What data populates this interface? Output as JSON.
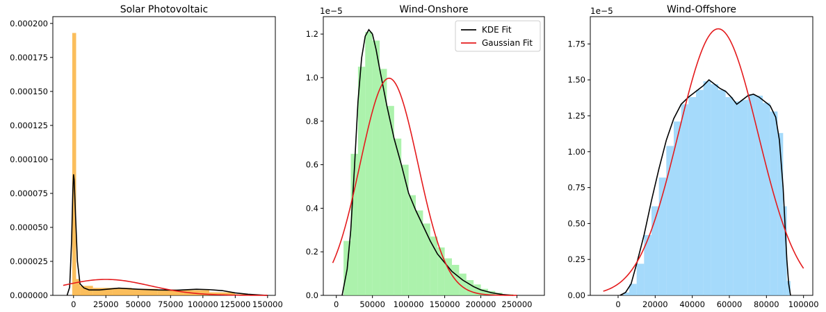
{
  "chart_data": [
    {
      "type": "histogram-density",
      "title": "Solar Photovoltaic",
      "xlim": [
        -16000,
        156000
      ],
      "ylim": [
        0,
        0.000205
      ],
      "xticks": [
        0,
        25000,
        50000,
        75000,
        100000,
        125000,
        150000
      ],
      "xtick_labels": [
        "0",
        "25000",
        "50000",
        "75000",
        "100000",
        "125000",
        "150000"
      ],
      "yticks": [
        0,
        2.5e-05,
        5e-05,
        7.5e-05,
        0.0001,
        0.000125,
        0.00015,
        0.000175,
        0.0002
      ],
      "ytick_labels": [
        "0.000000",
        "0.000025",
        "0.000050",
        "0.000075",
        "0.000100",
        "0.000125",
        "0.000150",
        "0.000175",
        "0.000200"
      ],
      "y_offset_label": "",
      "hist_color": "#f9a825",
      "hist_bins": [
        {
          "x0": -1000,
          "x1": 2000,
          "y": 0.000193
        },
        {
          "x0": 2000,
          "x1": 5000,
          "y": 1.2e-05
        },
        {
          "x0": 5000,
          "x1": 15000,
          "y": 7e-06
        },
        {
          "x0": 15000,
          "x1": 30000,
          "y": 5.5e-06
        },
        {
          "x0": 30000,
          "x1": 45000,
          "y": 5.5e-06
        },
        {
          "x0": 45000,
          "x1": 65000,
          "y": 4.8e-06
        },
        {
          "x0": 65000,
          "x1": 85000,
          "y": 4.2e-06
        },
        {
          "x0": 85000,
          "x1": 105000,
          "y": 3.8e-06
        },
        {
          "x0": 105000,
          "x1": 125000,
          "y": 2.2e-06
        },
        {
          "x0": 125000,
          "x1": 140000,
          "y": 8e-07
        },
        {
          "x0": 140000,
          "x1": 150000,
          "y": 2e-07
        }
      ],
      "kde": {
        "x": [
          -5000,
          -3000,
          -1500,
          -500,
          0,
          500,
          1500,
          3000,
          5000,
          8000,
          12000,
          20000,
          35000,
          50000,
          65000,
          80000,
          95000,
          105000,
          115000,
          125000,
          135000,
          145000,
          150000
        ],
        "y": [
          0.0,
          6e-06,
          4e-05,
          7.8e-05,
          8.9e-05,
          8.5e-05,
          6e-05,
          2.5e-05,
          8.5e-06,
          5.5e-06,
          4e-06,
          4e-06,
          5.3e-06,
          4.5e-06,
          4e-06,
          3.8e-06,
          4.5e-06,
          4.2e-06,
          3.5e-06,
          1.8e-06,
          8e-07,
          2e-07,
          0.0
        ]
      },
      "gaussian": {
        "mean": 25000,
        "std": 34000,
        "xrange": [
          -8000,
          150000
        ]
      },
      "legend": null
    },
    {
      "type": "histogram-density",
      "title": "Wind-Onshore",
      "xlim": [
        -18000,
        288000
      ],
      "ylim": [
        0,
        1.28e-05
      ],
      "xticks": [
        0,
        50000,
        100000,
        150000,
        200000,
        250000
      ],
      "xtick_labels": [
        "0",
        "50000",
        "100000",
        "150000",
        "200000",
        "250000"
      ],
      "yticks": [
        0,
        2e-06,
        4e-06,
        6e-06,
        8e-06,
        1e-05,
        1.2e-05
      ],
      "ytick_labels": [
        "0.0",
        "0.2",
        "0.4",
        "0.6",
        "0.8",
        "1.0",
        "1.2"
      ],
      "y_offset_label": "1e−5",
      "hist_color": "#90ee90",
      "hist_bins": [
        {
          "x0": 10000,
          "x1": 20000,
          "y": 2.5e-06
        },
        {
          "x0": 20000,
          "x1": 30000,
          "y": 6.5e-06
        },
        {
          "x0": 30000,
          "x1": 40000,
          "y": 1.05e-05
        },
        {
          "x0": 40000,
          "x1": 50000,
          "y": 1.21e-05
        },
        {
          "x0": 50000,
          "x1": 60000,
          "y": 1.17e-05
        },
        {
          "x0": 60000,
          "x1": 70000,
          "y": 1.04e-05
        },
        {
          "x0": 70000,
          "x1": 80000,
          "y": 8.7e-06
        },
        {
          "x0": 80000,
          "x1": 90000,
          "y": 7.2e-06
        },
        {
          "x0": 90000,
          "x1": 100000,
          "y": 6e-06
        },
        {
          "x0": 100000,
          "x1": 110000,
          "y": 4.6e-06
        },
        {
          "x0": 110000,
          "x1": 120000,
          "y": 3.9e-06
        },
        {
          "x0": 120000,
          "x1": 130000,
          "y": 3.3e-06
        },
        {
          "x0": 130000,
          "x1": 140000,
          "y": 2.7e-06
        },
        {
          "x0": 140000,
          "x1": 150000,
          "y": 2.2e-06
        },
        {
          "x0": 150000,
          "x1": 160000,
          "y": 1.7e-06
        },
        {
          "x0": 160000,
          "x1": 170000,
          "y": 1.4e-06
        },
        {
          "x0": 170000,
          "x1": 180000,
          "y": 1e-06
        },
        {
          "x0": 180000,
          "x1": 190000,
          "y": 7e-07
        },
        {
          "x0": 190000,
          "x1": 200000,
          "y": 5e-07
        },
        {
          "x0": 200000,
          "x1": 210000,
          "y": 3e-07
        },
        {
          "x0": 210000,
          "x1": 220000,
          "y": 2e-07
        },
        {
          "x0": 220000,
          "x1": 230000,
          "y": 1.2e-07
        },
        {
          "x0": 230000,
          "x1": 245000,
          "y": 5e-08
        }
      ],
      "kde": {
        "x": [
          8000,
          15000,
          20000,
          25000,
          30000,
          35000,
          40000,
          45000,
          50000,
          55000,
          60000,
          70000,
          80000,
          90000,
          100000,
          110000,
          120000,
          130000,
          140000,
          150000,
          160000,
          175000,
          190000,
          200000,
          215000,
          230000,
          245000
        ],
        "y": [
          0.0,
          1.2e-06,
          3e-06,
          5.8e-06,
          8.9e-06,
          1.09e-05,
          1.19e-05,
          1.22e-05,
          1.2e-05,
          1.13e-05,
          1.04e-05,
          8.7e-06,
          7.2e-06,
          6e-06,
          4.7e-06,
          3.9e-06,
          3.2e-06,
          2.5e-06,
          1.9e-06,
          1.5e-06,
          1.1e-06,
          7e-07,
          4e-07,
          2.5e-07,
          1.2e-07,
          4e-08,
          0.0
        ]
      },
      "gaussian": {
        "mean": 73000,
        "std": 40000,
        "xrange": [
          -5000,
          250000
        ]
      },
      "legend": {
        "position": "upper right",
        "entries": [
          {
            "label": "KDE Fit",
            "color": "#000000"
          },
          {
            "label": "Gaussian Fit",
            "color": "#e41a1c"
          }
        ]
      }
    },
    {
      "type": "histogram-density",
      "title": "Wind-Offshore",
      "xlim": [
        -15000,
        105000
      ],
      "ylim": [
        0,
        1.94e-05
      ],
      "xticks": [
        0,
        20000,
        40000,
        60000,
        80000,
        100000
      ],
      "xtick_labels": [
        "0",
        "20000",
        "40000",
        "60000",
        "80000",
        "100000"
      ],
      "yticks": [
        0,
        2.5e-06,
        5e-06,
        7.5e-06,
        1e-05,
        1.25e-05,
        1.5e-05,
        1.75e-05
      ],
      "ytick_labels": [
        "0.00",
        "0.25",
        "0.50",
        "0.75",
        "1.00",
        "1.25",
        "1.50",
        "1.75"
      ],
      "y_offset_label": "1e−5",
      "hist_color": "#87cefa",
      "hist_bins": [
        {
          "x0": 3000,
          "x1": 6000,
          "y": 2e-07
        },
        {
          "x0": 6000,
          "x1": 10000,
          "y": 8e-07
        },
        {
          "x0": 10000,
          "x1": 14000,
          "y": 2.2e-06
        },
        {
          "x0": 14000,
          "x1": 18000,
          "y": 4.2e-06
        },
        {
          "x0": 18000,
          "x1": 22000,
          "y": 6.2e-06
        },
        {
          "x0": 22000,
          "x1": 26000,
          "y": 8.2e-06
        },
        {
          "x0": 26000,
          "x1": 30000,
          "y": 1.04e-05
        },
        {
          "x0": 30000,
          "x1": 34000,
          "y": 1.21e-05
        },
        {
          "x0": 34000,
          "x1": 38000,
          "y": 1.33e-05
        },
        {
          "x0": 38000,
          "x1": 42000,
          "y": 1.38e-05
        },
        {
          "x0": 42000,
          "x1": 46000,
          "y": 1.43e-05
        },
        {
          "x0": 46000,
          "x1": 50000,
          "y": 1.49e-05
        },
        {
          "x0": 50000,
          "x1": 54000,
          "y": 1.47e-05
        },
        {
          "x0": 54000,
          "x1": 58000,
          "y": 1.43e-05
        },
        {
          "x0": 58000,
          "x1": 62000,
          "y": 1.38e-05
        },
        {
          "x0": 62000,
          "x1": 66000,
          "y": 1.35e-05
        },
        {
          "x0": 66000,
          "x1": 70000,
          "y": 1.36e-05
        },
        {
          "x0": 70000,
          "x1": 74000,
          "y": 1.4e-05
        },
        {
          "x0": 74000,
          "x1": 78000,
          "y": 1.39e-05
        },
        {
          "x0": 78000,
          "x1": 82000,
          "y": 1.34e-05
        },
        {
          "x0": 82000,
          "x1": 86000,
          "y": 1.28e-05
        },
        {
          "x0": 86000,
          "x1": 89000,
          "y": 1.13e-05
        },
        {
          "x0": 89000,
          "x1": 91000,
          "y": 6.2e-06
        },
        {
          "x0": 91000,
          "x1": 93000,
          "y": 1e-06
        }
      ],
      "kde": {
        "x": [
          1000,
          4000,
          7000,
          10000,
          14000,
          18000,
          22000,
          26000,
          30000,
          34000,
          38000,
          42000,
          46000,
          49000,
          52000,
          55000,
          58000,
          61000,
          64000,
          67000,
          70000,
          73000,
          76000,
          79000,
          82000,
          85000,
          87000,
          89000,
          90000,
          91000,
          92000,
          93000
        ],
        "y": [
          0.0,
          2e-07,
          8e-07,
          2.2e-06,
          4.2e-06,
          6.6e-06,
          8.8e-06,
          1.08e-05,
          1.23e-05,
          1.33e-05,
          1.38e-05,
          1.42e-05,
          1.46e-05,
          1.5e-05,
          1.47e-05,
          1.44e-05,
          1.42e-05,
          1.38e-05,
          1.33e-05,
          1.36e-05,
          1.39e-05,
          1.4e-05,
          1.38e-05,
          1.35e-05,
          1.32e-05,
          1.24e-05,
          1.08e-05,
          7.5e-06,
          5e-06,
          2.5e-06,
          8e-07,
          0.0
        ]
      },
      "gaussian": {
        "mean": 54000,
        "std": 21500,
        "xrange": [
          -8000,
          100000
        ]
      },
      "legend": null
    }
  ]
}
